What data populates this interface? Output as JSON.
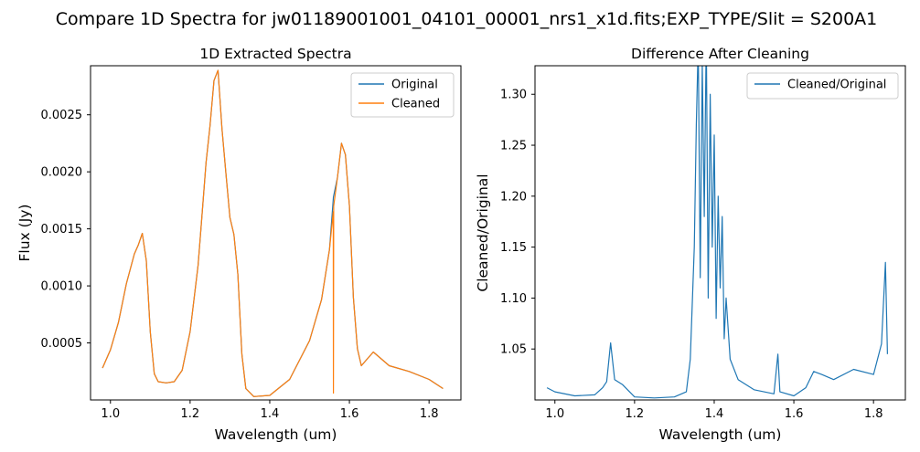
{
  "figure_title": "Compare 1D Spectra for jw01189001001_04101_00001_nrs1_x1d.fits;EXP_TYPE/Slit = S200A1",
  "chart_data": [
    {
      "type": "line",
      "title": "1D Extracted Spectra",
      "xlabel": "Wavelength (um)",
      "ylabel": "Flux (Jy)",
      "xlim": [
        0.95,
        1.88
      ],
      "ylim": [
        0.0,
        0.00293
      ],
      "xticks": [
        1.0,
        1.2,
        1.4,
        1.6,
        1.8
      ],
      "xtick_labels": [
        "1.0",
        "1.2",
        "1.4",
        "1.6",
        "1.8"
      ],
      "yticks": [
        0.0005,
        0.001,
        0.0015,
        0.002,
        0.0025
      ],
      "ytick_labels": [
        "0.0005",
        "0.0010",
        "0.0015",
        "0.0020",
        "0.0025"
      ],
      "legend_position": "top-right",
      "series": [
        {
          "name": "Original",
          "color": "#1f77b4",
          "x": [
            0.98,
            1.0,
            1.02,
            1.04,
            1.06,
            1.07,
            1.08,
            1.09,
            1.1,
            1.11,
            1.12,
            1.14,
            1.16,
            1.18,
            1.2,
            1.22,
            1.23,
            1.24,
            1.25,
            1.26,
            1.27,
            1.28,
            1.29,
            1.3,
            1.31,
            1.32,
            1.33,
            1.34,
            1.36,
            1.4,
            1.45,
            1.5,
            1.53,
            1.55,
            1.56,
            1.57,
            1.58,
            1.59,
            1.6,
            1.61,
            1.62,
            1.63,
            1.66,
            1.7,
            1.75,
            1.8,
            1.835
          ],
          "values": [
            0.00028,
            0.00044,
            0.00068,
            0.00102,
            0.00128,
            0.00136,
            0.00146,
            0.00122,
            0.0006,
            0.00023,
            0.00016,
            0.00015,
            0.00016,
            0.00026,
            0.0006,
            0.00118,
            0.00162,
            0.00208,
            0.0024,
            0.0028,
            0.00289,
            0.00238,
            0.00198,
            0.0016,
            0.00145,
            0.0011,
            0.0004,
            0.0001,
            3e-05,
            4e-05,
            0.00018,
            0.00052,
            0.00088,
            0.00132,
            0.00178,
            0.00195,
            0.00225,
            0.00215,
            0.0017,
            0.0009,
            0.00045,
            0.0003,
            0.00042,
            0.0003,
            0.00025,
            0.00018,
            0.0001
          ]
        },
        {
          "name": "Cleaned",
          "color": "#ff7f0e",
          "x": [
            0.98,
            1.0,
            1.02,
            1.04,
            1.06,
            1.07,
            1.08,
            1.09,
            1.1,
            1.11,
            1.12,
            1.14,
            1.16,
            1.18,
            1.2,
            1.22,
            1.23,
            1.24,
            1.25,
            1.26,
            1.27,
            1.28,
            1.29,
            1.3,
            1.31,
            1.32,
            1.33,
            1.34,
            1.36,
            1.4,
            1.45,
            1.5,
            1.53,
            1.55,
            1.5595,
            1.56,
            1.5605,
            1.57,
            1.58,
            1.59,
            1.6,
            1.61,
            1.62,
            1.63,
            1.66,
            1.7,
            1.75,
            1.8,
            1.835
          ],
          "values": [
            0.00028,
            0.00044,
            0.00068,
            0.00102,
            0.00128,
            0.00136,
            0.00146,
            0.00122,
            0.0006,
            0.00023,
            0.00016,
            0.00015,
            0.00016,
            0.00026,
            0.0006,
            0.00118,
            0.00162,
            0.00208,
            0.0024,
            0.0028,
            0.00289,
            0.00238,
            0.00198,
            0.0016,
            0.00145,
            0.0011,
            0.0004,
            0.0001,
            3e-05,
            4e-05,
            0.00018,
            0.00052,
            0.00088,
            0.00132,
            0.00165,
            6e-05,
            0.0017,
            0.00195,
            0.00225,
            0.00215,
            0.0017,
            0.0009,
            0.00045,
            0.0003,
            0.00042,
            0.0003,
            0.00025,
            0.00018,
            0.0001
          ]
        }
      ]
    },
    {
      "type": "line",
      "title": "Difference After Cleaning",
      "xlabel": "Wavelength (um)",
      "ylabel": "Cleaned/Original",
      "xlim": [
        0.95,
        1.88
      ],
      "ylim": [
        1.0,
        1.328
      ],
      "xticks": [
        1.0,
        1.2,
        1.4,
        1.6,
        1.8
      ],
      "xtick_labels": [
        "1.0",
        "1.2",
        "1.4",
        "1.6",
        "1.8"
      ],
      "yticks": [
        1.05,
        1.1,
        1.15,
        1.2,
        1.25,
        1.3
      ],
      "ytick_labels": [
        "1.05",
        "1.10",
        "1.15",
        "1.20",
        "1.25",
        "1.30"
      ],
      "legend_position": "top-right",
      "series": [
        {
          "name": "Cleaned/Original",
          "color": "#1f77b4",
          "x": [
            0.98,
            1.0,
            1.05,
            1.1,
            1.12,
            1.13,
            1.14,
            1.15,
            1.17,
            1.2,
            1.25,
            1.3,
            1.33,
            1.34,
            1.35,
            1.355,
            1.36,
            1.365,
            1.37,
            1.375,
            1.38,
            1.385,
            1.39,
            1.395,
            1.4,
            1.405,
            1.41,
            1.415,
            1.42,
            1.425,
            1.43,
            1.44,
            1.46,
            1.5,
            1.55,
            1.56,
            1.565,
            1.6,
            1.63,
            1.65,
            1.67,
            1.7,
            1.75,
            1.8,
            1.82,
            1.83,
            1.835
          ],
          "values": [
            1.012,
            1.008,
            1.004,
            1.005,
            1.012,
            1.018,
            1.056,
            1.02,
            1.015,
            1.003,
            1.002,
            1.003,
            1.008,
            1.04,
            1.15,
            1.27,
            1.35,
            1.12,
            1.33,
            1.18,
            1.36,
            1.1,
            1.3,
            1.15,
            1.26,
            1.08,
            1.2,
            1.11,
            1.18,
            1.06,
            1.1,
            1.04,
            1.02,
            1.01,
            1.006,
            1.045,
            1.008,
            1.004,
            1.012,
            1.028,
            1.025,
            1.02,
            1.03,
            1.025,
            1.055,
            1.135,
            1.045
          ]
        }
      ]
    }
  ]
}
